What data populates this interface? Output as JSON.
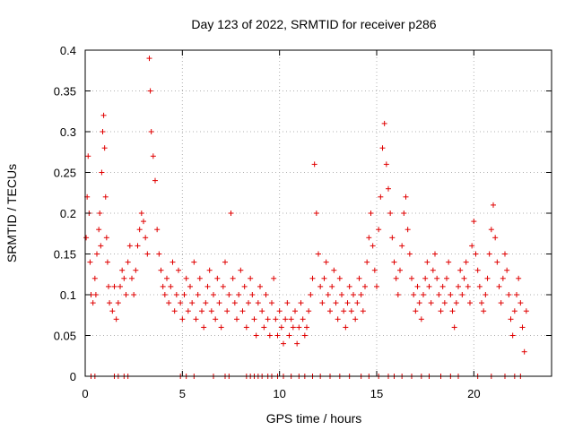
{
  "chart_data": {
    "type": "scatter",
    "title": "Day 123 of 2022, SRMTID for receiver p286",
    "xlabel": "GPS time / hours",
    "ylabel": "SRMTID / TECUs",
    "xlim": [
      0,
      24
    ],
    "ylim": [
      0,
      0.4
    ],
    "xticks": [
      0,
      5,
      10,
      15,
      20
    ],
    "xtick_labels": [
      "0",
      "5",
      "10",
      "15",
      "20"
    ],
    "yticks": [
      0,
      0.05,
      0.1,
      0.15,
      0.2,
      0.25,
      0.3,
      0.35,
      0.4
    ],
    "ytick_labels": [
      "0",
      "0.05",
      "0.1",
      "0.15",
      "0.2",
      "0.25",
      "0.3",
      "0.35",
      "0.4"
    ],
    "grid": true,
    "marker": "+",
    "color": "#e00000",
    "series": [
      {
        "name": "p286 SRMTID",
        "x": [
          0.05,
          0.1,
          0.15,
          0.2,
          0.25,
          0.3,
          0.4,
          0.5,
          0.55,
          0.6,
          0.7,
          0.75,
          0.8,
          0.85,
          0.9,
          0.95,
          1.0,
          1.05,
          1.1,
          1.15,
          1.2,
          1.25,
          1.4,
          1.5,
          1.6,
          1.7,
          1.8,
          1.9,
          2.0,
          2.1,
          2.2,
          2.3,
          2.4,
          2.5,
          2.6,
          2.7,
          2.8,
          2.9,
          3.0,
          3.1,
          3.2,
          3.3,
          3.35,
          3.4,
          3.5,
          3.6,
          3.7,
          3.8,
          3.9,
          4.0,
          4.1,
          4.2,
          4.3,
          4.4,
          4.5,
          4.6,
          4.7,
          4.8,
          4.9,
          5.0,
          5.1,
          5.2,
          5.3,
          5.4,
          5.5,
          5.6,
          5.7,
          5.8,
          5.9,
          6.0,
          6.1,
          6.2,
          6.3,
          6.4,
          6.5,
          6.6,
          6.7,
          6.8,
          6.9,
          7.0,
          7.1,
          7.2,
          7.3,
          7.4,
          7.5,
          7.6,
          7.7,
          7.8,
          7.9,
          8.0,
          8.1,
          8.2,
          8.3,
          8.4,
          8.5,
          8.6,
          8.7,
          8.8,
          8.9,
          9.0,
          9.1,
          9.2,
          9.3,
          9.4,
          9.5,
          9.6,
          9.7,
          9.8,
          9.9,
          10.0,
          10.1,
          10.2,
          10.3,
          10.4,
          10.5,
          10.6,
          10.7,
          10.8,
          10.9,
          11.0,
          11.1,
          11.2,
          11.3,
          11.4,
          11.5,
          11.6,
          11.7,
          11.8,
          11.9,
          12.0,
          12.1,
          12.2,
          12.3,
          12.4,
          12.5,
          12.6,
          12.7,
          12.8,
          12.9,
          13.0,
          13.1,
          13.2,
          13.3,
          13.4,
          13.5,
          13.6,
          13.7,
          13.8,
          13.9,
          14.0,
          14.1,
          14.2,
          14.3,
          14.4,
          14.5,
          14.6,
          14.7,
          14.8,
          14.9,
          15.0,
          15.1,
          15.2,
          15.3,
          15.4,
          15.5,
          15.6,
          15.7,
          15.8,
          15.9,
          16.0,
          16.1,
          16.2,
          16.3,
          16.4,
          16.5,
          16.6,
          16.7,
          16.8,
          16.9,
          17.0,
          17.1,
          17.2,
          17.3,
          17.4,
          17.5,
          17.6,
          17.7,
          17.8,
          17.9,
          18.0,
          18.1,
          18.2,
          18.3,
          18.4,
          18.5,
          18.6,
          18.7,
          18.8,
          18.9,
          19.0,
          19.1,
          19.2,
          19.3,
          19.4,
          19.5,
          19.6,
          19.7,
          19.8,
          19.9,
          20.0,
          20.1,
          20.2,
          20.3,
          20.4,
          20.5,
          20.6,
          20.7,
          20.8,
          20.9,
          21.0,
          21.1,
          21.2,
          21.3,
          21.4,
          21.5,
          21.6,
          21.7,
          21.8,
          21.9,
          22.0,
          22.1,
          22.2,
          22.3,
          22.4,
          22.5,
          22.6,
          22.7
        ],
        "y": [
          0.17,
          0.22,
          0.27,
          0.2,
          0.14,
          0.1,
          0.09,
          0.12,
          0.1,
          0.15,
          0.18,
          0.2,
          0.16,
          0.25,
          0.3,
          0.32,
          0.28,
          0.22,
          0.17,
          0.14,
          0.11,
          0.09,
          0.08,
          0.11,
          0.07,
          0.09,
          0.11,
          0.13,
          0.12,
          0.1,
          0.14,
          0.16,
          0.12,
          0.1,
          0.13,
          0.16,
          0.18,
          0.2,
          0.19,
          0.17,
          0.15,
          0.39,
          0.35,
          0.3,
          0.27,
          0.24,
          0.18,
          0.15,
          0.13,
          0.11,
          0.1,
          0.12,
          0.09,
          0.11,
          0.14,
          0.08,
          0.1,
          0.13,
          0.09,
          0.07,
          0.1,
          0.12,
          0.08,
          0.11,
          0.09,
          0.14,
          0.07,
          0.1,
          0.12,
          0.08,
          0.06,
          0.09,
          0.11,
          0.13,
          0.08,
          0.1,
          0.07,
          0.12,
          0.09,
          0.06,
          0.11,
          0.14,
          0.08,
          0.1,
          0.2,
          0.12,
          0.09,
          0.07,
          0.1,
          0.13,
          0.08,
          0.11,
          0.06,
          0.09,
          0.12,
          0.1,
          0.07,
          0.05,
          0.09,
          0.11,
          0.08,
          0.06,
          0.1,
          0.07,
          0.05,
          0.09,
          0.12,
          0.07,
          0.05,
          0.08,
          0.06,
          0.04,
          0.07,
          0.09,
          0.05,
          0.07,
          0.06,
          0.08,
          0.04,
          0.06,
          0.09,
          0.07,
          0.05,
          0.06,
          0.08,
          0.1,
          0.12,
          0.26,
          0.2,
          0.15,
          0.11,
          0.09,
          0.12,
          0.14,
          0.1,
          0.08,
          0.11,
          0.13,
          0.09,
          0.07,
          0.12,
          0.1,
          0.08,
          0.06,
          0.09,
          0.11,
          0.08,
          0.1,
          0.07,
          0.09,
          0.12,
          0.1,
          0.08,
          0.11,
          0.14,
          0.17,
          0.2,
          0.16,
          0.13,
          0.11,
          0.18,
          0.22,
          0.28,
          0.31,
          0.26,
          0.23,
          0.2,
          0.17,
          0.14,
          0.12,
          0.1,
          0.13,
          0.16,
          0.2,
          0.22,
          0.18,
          0.15,
          0.12,
          0.1,
          0.08,
          0.11,
          0.09,
          0.07,
          0.1,
          0.12,
          0.14,
          0.11,
          0.09,
          0.13,
          0.15,
          0.12,
          0.1,
          0.08,
          0.11,
          0.09,
          0.12,
          0.14,
          0.1,
          0.08,
          0.06,
          0.09,
          0.11,
          0.13,
          0.1,
          0.12,
          0.14,
          0.11,
          0.09,
          0.16,
          0.19,
          0.15,
          0.13,
          0.11,
          0.09,
          0.08,
          0.1,
          0.12,
          0.15,
          0.18,
          0.21,
          0.17,
          0.14,
          0.11,
          0.09,
          0.12,
          0.15,
          0.13,
          0.1,
          0.07,
          0.05,
          0.08,
          0.1,
          0.12,
          0.09,
          0.06,
          0.03,
          0.08
        ]
      }
    ],
    "zero_values": {
      "x": [
        0.3,
        0.5,
        1.5,
        1.7,
        2.0,
        2.2,
        4.9,
        5.2,
        5.6,
        6.6,
        7.2,
        7.4,
        8.3,
        8.5,
        8.7,
        8.9,
        9.1,
        9.4,
        9.6,
        9.9,
        10.2,
        10.6,
        11.0,
        11.3,
        11.7,
        12.1,
        12.6,
        13.1,
        13.6,
        14.2,
        14.6,
        15.1,
        15.6,
        15.9,
        16.3,
        16.8,
        17.3,
        17.7,
        18.3,
        18.8,
        19.2,
        20.2,
        20.9,
        21.6,
        22.1,
        22.4
      ]
    }
  }
}
